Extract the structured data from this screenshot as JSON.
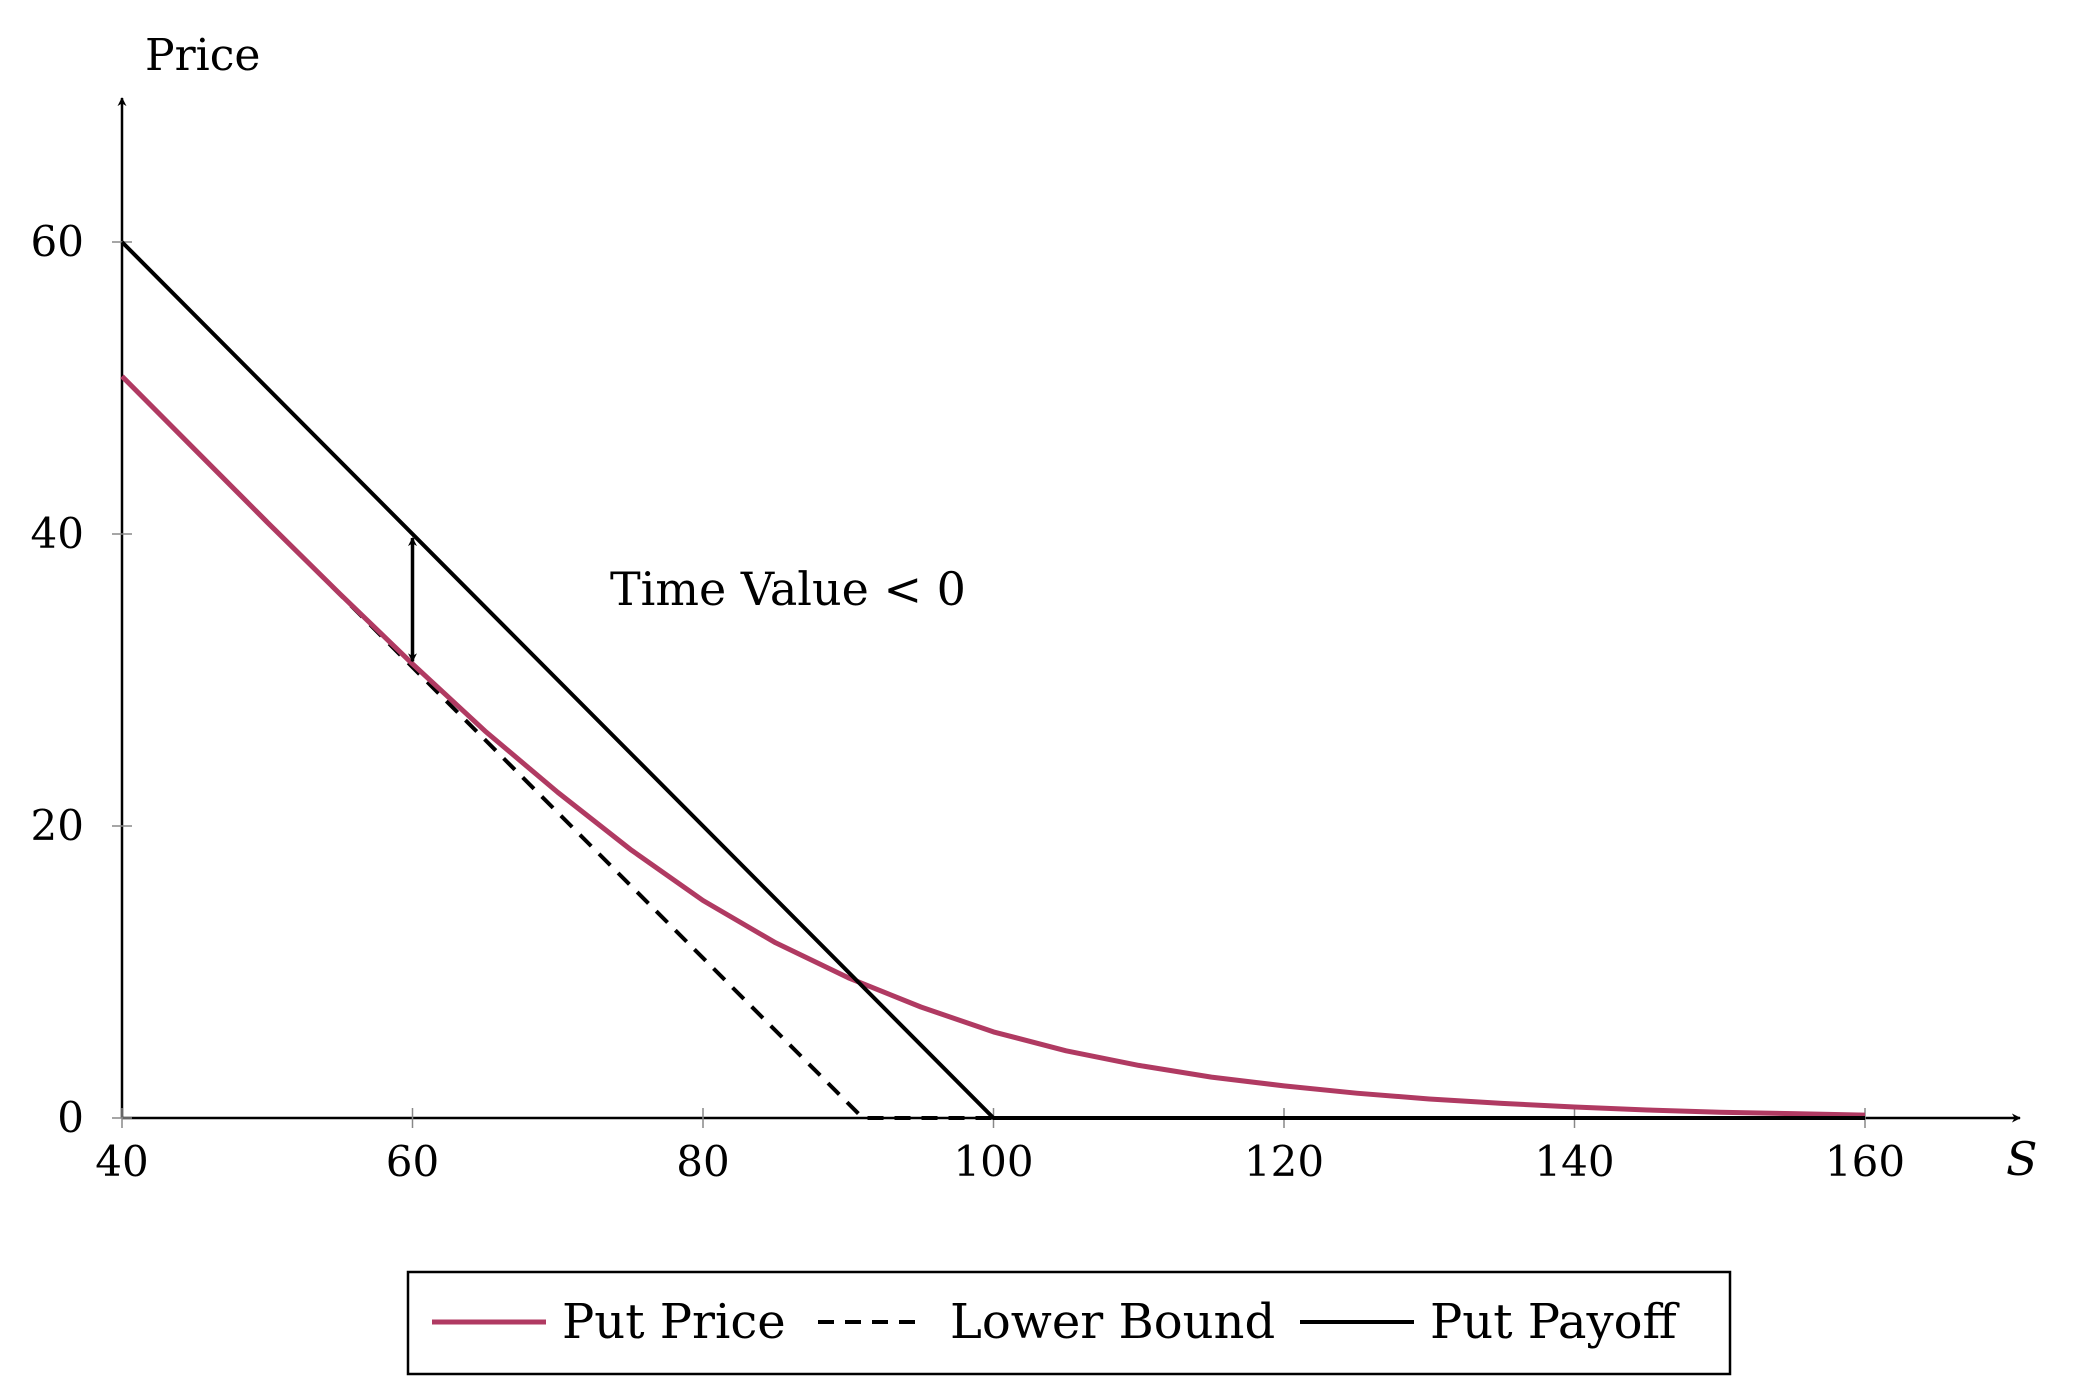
{
  "chart_data": {
    "type": "line",
    "ylabel": "Price",
    "xlabel": "S",
    "xlim": [
      40,
      160
    ],
    "ylim": [
      0,
      60
    ],
    "x_ticks": [
      40,
      60,
      80,
      100,
      120,
      140,
      160
    ],
    "y_ticks": [
      0,
      20,
      40,
      60
    ],
    "annotation": {
      "text": "Time Value < 0",
      "arrow_x": 60,
      "arrow_from": 40,
      "arrow_to": 31
    },
    "legend_position": "bottom",
    "series": [
      {
        "name": "Put Price",
        "color": "#b03a62",
        "style": "solid",
        "points": [
          [
            40,
            50.8
          ],
          [
            45,
            45.8
          ],
          [
            50,
            40.8
          ],
          [
            55,
            35.9
          ],
          [
            60,
            31.1
          ],
          [
            65,
            26.5
          ],
          [
            70,
            22.3
          ],
          [
            75,
            18.4
          ],
          [
            80,
            14.9
          ],
          [
            85,
            12.0
          ],
          [
            90,
            9.6
          ],
          [
            95,
            7.6
          ],
          [
            100,
            5.9
          ],
          [
            105,
            4.6
          ],
          [
            110,
            3.6
          ],
          [
            115,
            2.8
          ],
          [
            120,
            2.2
          ],
          [
            125,
            1.7
          ],
          [
            130,
            1.3
          ],
          [
            135,
            1.0
          ],
          [
            140,
            0.75
          ],
          [
            145,
            0.55
          ],
          [
            150,
            0.4
          ],
          [
            155,
            0.3
          ],
          [
            160,
            0.2
          ]
        ]
      },
      {
        "name": "Lower Bound",
        "color": "#000000",
        "style": "dashed",
        "points": [
          [
            40,
            50.8
          ],
          [
            91,
            0
          ],
          [
            160,
            0
          ]
        ]
      },
      {
        "name": "Put Payoff",
        "color": "#000000",
        "style": "solid",
        "points": [
          [
            40,
            60
          ],
          [
            100,
            0
          ],
          [
            160,
            0
          ]
        ]
      }
    ]
  }
}
